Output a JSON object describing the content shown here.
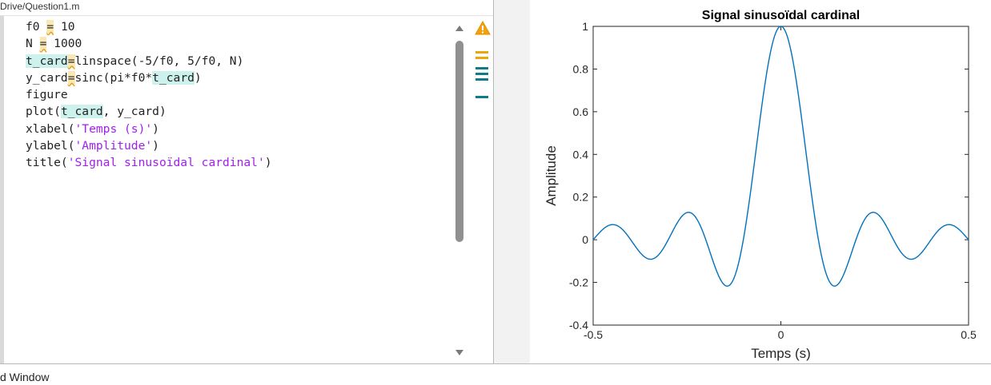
{
  "breadcrumb": "Drive/Question1.m",
  "code_lines": [
    [
      {
        "t": "f0 "
      },
      {
        "t": "=",
        "c": "hl-warn"
      },
      {
        "t": " 10"
      }
    ],
    [
      {
        "t": "N "
      },
      {
        "t": "=",
        "c": "hl-warn"
      },
      {
        "t": " 1000"
      }
    ],
    [
      {
        "t": "t_card",
        "c": "hl-var"
      },
      {
        "t": "=",
        "c": "hl-warn"
      },
      {
        "t": "linspace(-5/f0, 5/f0, N)"
      }
    ],
    [
      {
        "t": "y_card"
      },
      {
        "t": "=",
        "c": "hl-warn"
      },
      {
        "t": "sinc(pi*f0*"
      },
      {
        "t": "t_card",
        "c": "hl-var"
      },
      {
        "t": ")"
      }
    ],
    [
      {
        "t": "figure"
      }
    ],
    [
      {
        "t": "plot("
      },
      {
        "t": "t_card",
        "c": "hl-var"
      },
      {
        "t": ", y_card)"
      }
    ],
    [
      {
        "t": "xlabel("
      },
      {
        "t": "'Temps (s)'",
        "c": "str"
      },
      {
        "t": ")"
      }
    ],
    [
      {
        "t": "ylabel("
      },
      {
        "t": "'Amplitude'",
        "c": "str"
      },
      {
        "t": ")"
      }
    ],
    [
      {
        "t": "title("
      },
      {
        "t": "'Signal sinusoïdal cardinal'",
        "c": "str"
      },
      {
        "t": ")"
      }
    ]
  ],
  "colors": {
    "warning_marker": "#f0a30a",
    "info_marker": "#0e7c86",
    "plot_line": "#0072bd",
    "string": "#a020f0"
  },
  "bottom_panel": {
    "label": "d Window"
  },
  "chart_data": {
    "type": "line",
    "title": "Signal sinusoïdal cardinal",
    "xlabel": "Temps (s)",
    "ylabel": "Amplitude",
    "xlim": [
      -0.5,
      0.5
    ],
    "ylim": [
      -0.4,
      1
    ],
    "xticks": [
      -0.5,
      0,
      0.5
    ],
    "xtick_labels": [
      "-0.5",
      "0",
      "0.5"
    ],
    "yticks": [
      -0.4,
      -0.2,
      0,
      0.2,
      0.4,
      0.6,
      0.8,
      1
    ],
    "ytick_labels": [
      "-0.4",
      "-0.2",
      "0",
      "0.2",
      "0.4",
      "0.6",
      "0.8",
      "1"
    ],
    "function": "sinc(pi*f0*t)",
    "f0": 10,
    "n_points": 1000,
    "series": [
      {
        "function": "sin(pi*f0*t)/(pi*f0*t)",
        "color": "#0072bd"
      }
    ]
  }
}
